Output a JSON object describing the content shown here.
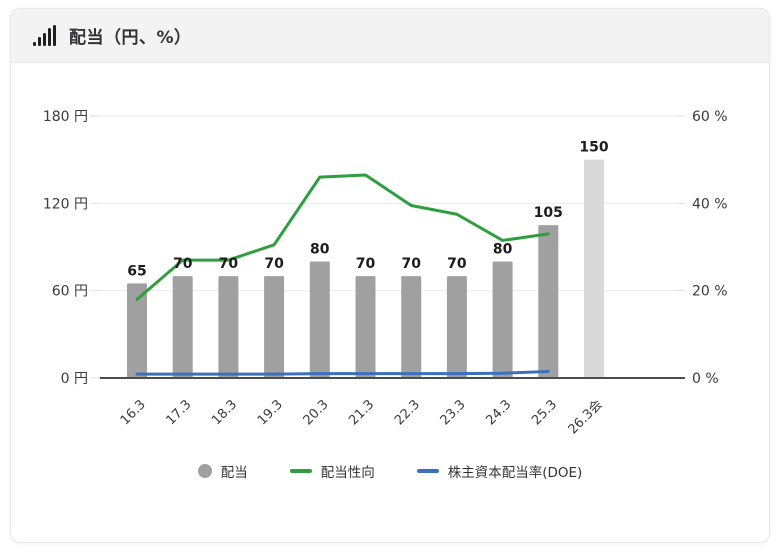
{
  "header": {
    "title": "配当（円、%）",
    "icon": "bar-chart-icon"
  },
  "chart_data": {
    "type": "bar",
    "title": "配当（円、%）",
    "categories": [
      "16.3",
      "17.3",
      "18.3",
      "19.3",
      "20.3",
      "21.3",
      "22.3",
      "23.3",
      "24.3",
      "25.3",
      "26.3会"
    ],
    "series": [
      {
        "name": "配当",
        "type": "bar",
        "axis": "left",
        "unit": "円",
        "values": [
          65,
          70,
          70,
          70,
          80,
          70,
          70,
          70,
          80,
          105,
          150
        ],
        "labels": [
          "65",
          "70",
          "70",
          "70",
          "80",
          "70",
          "70",
          "70",
          "80",
          "105",
          "150"
        ],
        "color": "#a0a0a0",
        "forecast_color": "#d9d9d9",
        "forecast_index": 10
      },
      {
        "name": "配当性向",
        "type": "line",
        "axis": "right",
        "unit": "%",
        "values": [
          18,
          27,
          27,
          30.5,
          46,
          46.5,
          39.5,
          37.5,
          31.5,
          33
        ],
        "color": "#2f9e41"
      },
      {
        "name": "株主資本配当率(DOE)",
        "type": "line",
        "axis": "right",
        "unit": "%",
        "values": [
          0.9,
          0.9,
          0.9,
          0.9,
          1.0,
          1.0,
          1.0,
          1.0,
          1.1,
          1.5
        ],
        "color": "#3d6fbf"
      }
    ],
    "left_axis": {
      "min": 0,
      "max": 180,
      "unit": "円",
      "ticks": [
        {
          "label": "0 円",
          "value": 0
        },
        {
          "label": "60 円",
          "value": 60
        },
        {
          "label": "120 円",
          "value": 120
        },
        {
          "label": "180 円",
          "value": 180
        }
      ]
    },
    "right_axis": {
      "min": 0,
      "max": 60,
      "unit": "%",
      "ticks": [
        {
          "label": "0 %",
          "value": 0
        },
        {
          "label": "20 %",
          "value": 20
        },
        {
          "label": "40 %",
          "value": 40
        },
        {
          "label": "60 %",
          "value": 60
        }
      ]
    },
    "grid": true,
    "legend_position": "bottom",
    "colors": {
      "bar": "#a0a0a0",
      "bar_forecast": "#d9d9d9",
      "payout_line": "#2f9e41",
      "doe_line": "#3d6fbf",
      "axis_line": "#4d4d4d",
      "gridline": "#ececec",
      "bar_label": "#1c1c1c",
      "tick_label": "#3b3b3b"
    }
  }
}
